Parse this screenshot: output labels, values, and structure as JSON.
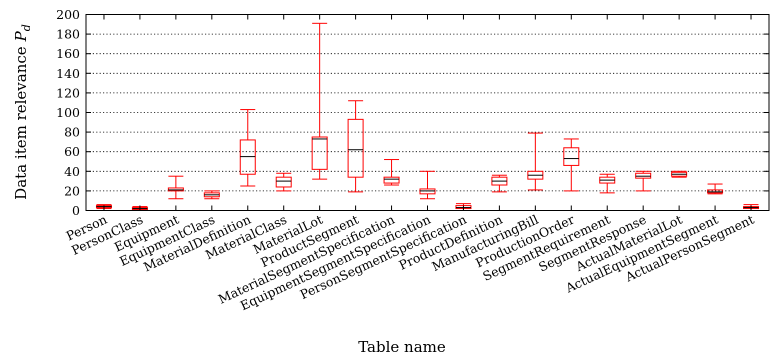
{
  "chart_data": {
    "type": "boxplot",
    "xlabel": "Table name",
    "ylabel": "Data item relevance",
    "ylabel_symbol": "P",
    "ylabel_subscript": "d",
    "ylim": [
      0,
      200
    ],
    "yticks": [
      0,
      20,
      40,
      60,
      80,
      100,
      120,
      140,
      160,
      180,
      200
    ],
    "grid": "horizontal dotted",
    "box_color": "#ff0000",
    "median_color": "#000000",
    "categories": [
      "Person",
      "PersonClass",
      "Equipment",
      "EquipmentClass",
      "MaterialDefinition",
      "MaterialClass",
      "MaterialLot",
      "ProductSegment",
      "MaterialSegmentSpecification",
      "EquipmentSegmentSpecification",
      "PersonSegmentSpecification",
      "ProductDefinition",
      "ManufacturingBill",
      "ProductionOrder",
      "SegmentRequirement",
      "SegmentResponse",
      "ActualMaterialLot",
      "ActualEquipmentSegment",
      "ActualPersonSegment"
    ],
    "boxes": [
      {
        "whisker_low": 2,
        "q1": 3,
        "median": 4,
        "q3": 5,
        "whisker_high": 6
      },
      {
        "whisker_low": 0,
        "q1": 1,
        "median": 2,
        "q3": 3,
        "whisker_high": 4
      },
      {
        "whisker_low": 12,
        "q1": 20,
        "median": 21,
        "q3": 23,
        "whisker_high": 35
      },
      {
        "whisker_low": 12,
        "q1": 14,
        "median": 16,
        "q3": 18,
        "whisker_high": 20
      },
      {
        "whisker_low": 25,
        "q1": 37,
        "median": 55,
        "q3": 72,
        "whisker_high": 103
      },
      {
        "whisker_low": 20,
        "q1": 24,
        "median": 30,
        "q3": 34,
        "whisker_high": 38
      },
      {
        "whisker_low": 32,
        "q1": 42,
        "median": 73,
        "q3": 75,
        "whisker_high": 191
      },
      {
        "whisker_low": 19,
        "q1": 34,
        "median": 62,
        "q3": 93,
        "whisker_high": 112
      },
      {
        "whisker_low": 26,
        "q1": 28,
        "median": 32,
        "q3": 34,
        "whisker_high": 52
      },
      {
        "whisker_low": 12,
        "q1": 17,
        "median": 20,
        "q3": 22,
        "whisker_high": 40
      },
      {
        "whisker_low": 0,
        "q1": 2,
        "median": 3,
        "q3": 5,
        "whisker_high": 7
      },
      {
        "whisker_low": 19,
        "q1": 26,
        "median": 30,
        "q3": 34,
        "whisker_high": 36
      },
      {
        "whisker_low": 21,
        "q1": 32,
        "median": 36,
        "q3": 40,
        "whisker_high": 79
      },
      {
        "whisker_low": 20,
        "q1": 46,
        "median": 53,
        "q3": 64,
        "whisker_high": 73
      },
      {
        "whisker_low": 18,
        "q1": 28,
        "median": 31,
        "q3": 34,
        "whisker_high": 37
      },
      {
        "whisker_low": 20,
        "q1": 33,
        "median": 35,
        "q3": 38,
        "whisker_high": 40
      },
      {
        "whisker_low": 34,
        "q1": 35,
        "median": 37,
        "q3": 39,
        "whisker_high": 40
      },
      {
        "whisker_low": 17,
        "q1": 18,
        "median": 19,
        "q3": 21,
        "whisker_high": 27
      },
      {
        "whisker_low": 0,
        "q1": 2,
        "median": 3,
        "q3": 4,
        "whisker_high": 6
      }
    ]
  }
}
